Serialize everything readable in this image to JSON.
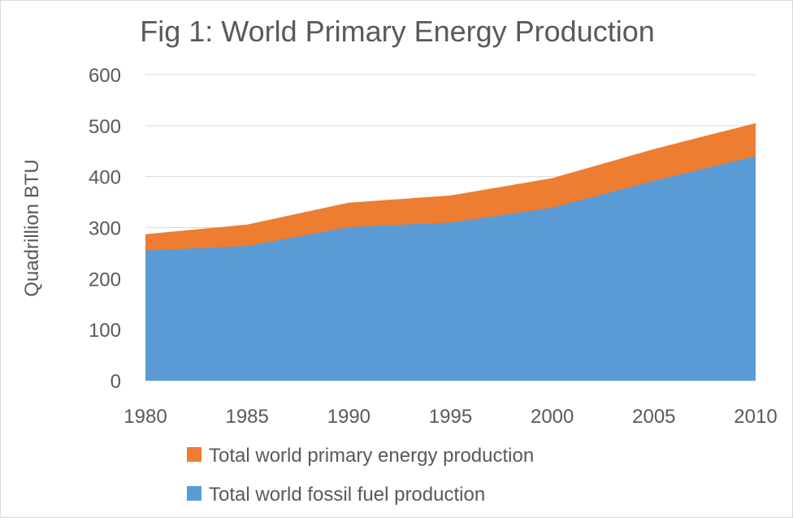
{
  "chart_data": {
    "type": "area",
    "title": "Fig 1: World Primary Energy Production",
    "xlabel": "",
    "ylabel": "Quadrillion BTU",
    "x": [
      1980,
      1985,
      1990,
      1995,
      2000,
      2005,
      2010
    ],
    "ylim": [
      0,
      600
    ],
    "yticks": [
      0,
      100,
      200,
      300,
      400,
      500,
      600
    ],
    "grid": true,
    "legend_position": "bottom",
    "series": [
      {
        "name": "Total world primary energy production",
        "color": "#ED7D31",
        "values": [
          287,
          306,
          349,
          363,
          397,
          454,
          505
        ]
      },
      {
        "name": "Total world fossil fuel production",
        "color": "#5B9BD5",
        "values": [
          255,
          264,
          301,
          310,
          339,
          392,
          440
        ]
      }
    ]
  }
}
